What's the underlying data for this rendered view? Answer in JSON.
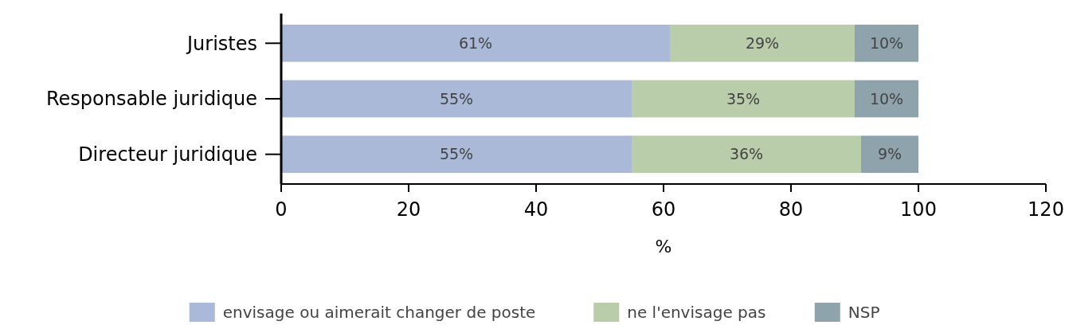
{
  "chart_data": {
    "type": "bar",
    "orientation": "horizontal",
    "stacked": true,
    "xlabel": "%",
    "categories": [
      "Juristes",
      "Responsable juridique",
      "Directeur juridique"
    ],
    "series": [
      {
        "name": "envisage ou aimerait changer de poste",
        "color": "#aab9d8",
        "values": [
          61,
          55,
          55
        ],
        "value_labels": [
          "61%",
          "55%",
          "55%"
        ]
      },
      {
        "name": "ne l'envisage pas",
        "color": "#b9cdaa",
        "values": [
          29,
          35,
          36
        ],
        "value_labels": [
          "29%",
          "35%",
          "36%"
        ]
      },
      {
        "name": "NSP",
        "color": "#8fa3ad",
        "values": [
          10,
          10,
          9
        ],
        "value_labels": [
          "10%",
          "10%",
          "9%"
        ]
      }
    ],
    "xlim": [
      0,
      120
    ],
    "xticks": [
      0,
      20,
      40,
      60,
      80,
      100,
      120
    ],
    "grid": false,
    "legend": "bottom"
  }
}
